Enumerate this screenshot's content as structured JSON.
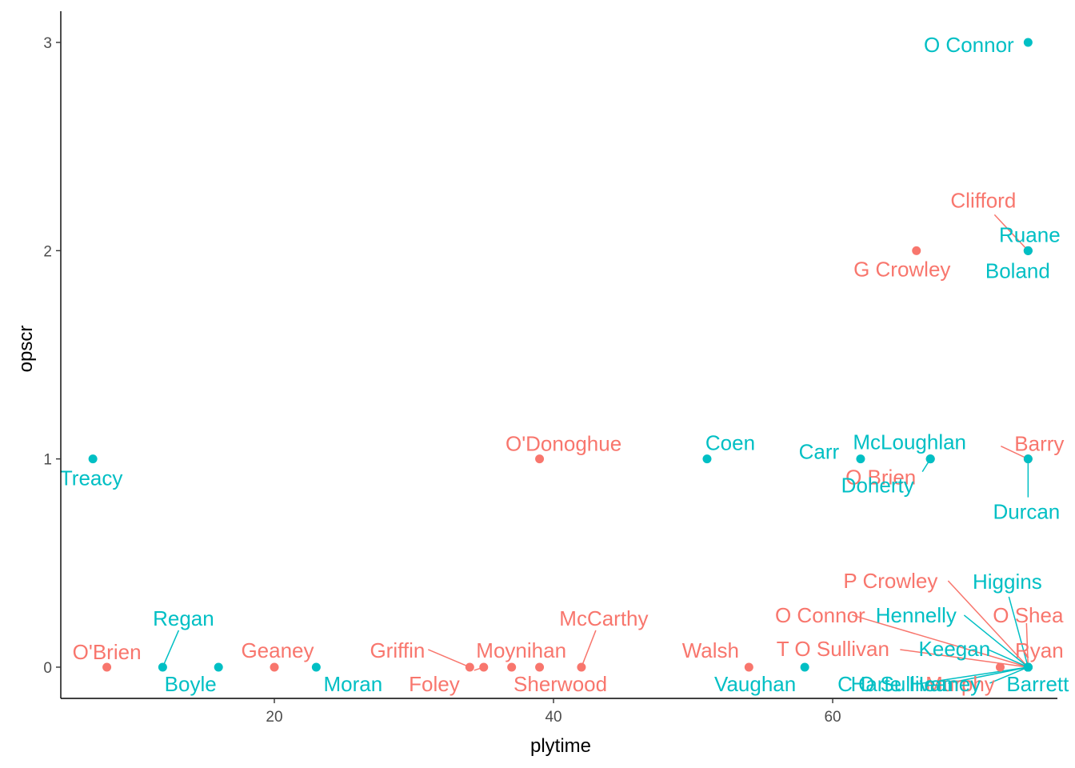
{
  "colors": {
    "team_a": "#F8766D",
    "team_b": "#00BFC4",
    "axis": "#000000",
    "tick_text": "#4d4d4d"
  },
  "chart_data": {
    "type": "scatter",
    "title": "",
    "xlabel": "plytime",
    "ylabel": "opscr",
    "xlim": [
      4.7,
      76.1
    ],
    "ylim": [
      -0.15,
      3.15
    ],
    "x_ticks": [
      20,
      40,
      60
    ],
    "y_ticks": [
      0,
      1,
      2,
      3
    ],
    "grid": false,
    "legend": "none",
    "points": [
      {
        "label": "O'Brien",
        "x": 8,
        "y": 0,
        "group": "a"
      },
      {
        "label": "Geaney",
        "x": 20,
        "y": 0,
        "group": "a"
      },
      {
        "label": "Griffin",
        "x": 34,
        "y": 0,
        "group": "a"
      },
      {
        "label": "Foley",
        "x": 35,
        "y": 0,
        "group": "a"
      },
      {
        "label": "Moynihan",
        "x": 37,
        "y": 0,
        "group": "a"
      },
      {
        "label": "Sherwood",
        "x": 39,
        "y": 0,
        "group": "a"
      },
      {
        "label": "McCarthy",
        "x": 42,
        "y": 0,
        "group": "a"
      },
      {
        "label": "Walsh",
        "x": 54,
        "y": 0,
        "group": "a"
      },
      {
        "label": "P Crowley",
        "x": 74,
        "y": 0,
        "group": "a"
      },
      {
        "label": "O Connor",
        "x": 74,
        "y": 0,
        "group": "a"
      },
      {
        "label": "T O Sullivan",
        "x": 74,
        "y": 0,
        "group": "a"
      },
      {
        "label": "O Shea",
        "x": 74,
        "y": 0,
        "group": "a"
      },
      {
        "label": "Ryan",
        "x": 74,
        "y": 0,
        "group": "a"
      },
      {
        "label": "Murphy",
        "x": 72,
        "y": 0,
        "group": "a"
      },
      {
        "label": "O'Donoghue",
        "x": 39,
        "y": 1,
        "group": "a"
      },
      {
        "label": "Barry",
        "x": 74,
        "y": 1,
        "group": "a"
      },
      {
        "label": "O Brien",
        "x": 67,
        "y": 1,
        "group": "a"
      },
      {
        "label": "G Crowley",
        "x": 66,
        "y": 2,
        "group": "a"
      },
      {
        "label": "Clifford",
        "x": 74,
        "y": 2,
        "group": "a"
      },
      {
        "label": "Regan",
        "x": 12,
        "y": 0,
        "group": "b"
      },
      {
        "label": "Boyle",
        "x": 16,
        "y": 0,
        "group": "b"
      },
      {
        "label": "Moran",
        "x": 23,
        "y": 0,
        "group": "b"
      },
      {
        "label": "Vaughan",
        "x": 58,
        "y": 0,
        "group": "b"
      },
      {
        "label": "C O Sullivan",
        "x": 74,
        "y": 0,
        "group": "b"
      },
      {
        "label": "Harte",
        "x": 74,
        "y": 0,
        "group": "b"
      },
      {
        "label": "Heaney",
        "x": 74,
        "y": 0,
        "group": "b"
      },
      {
        "label": "Barrett",
        "x": 74,
        "y": 0,
        "group": "b"
      },
      {
        "label": "Higgins",
        "x": 74,
        "y": 0,
        "group": "b"
      },
      {
        "label": "Hennelly",
        "x": 74,
        "y": 0,
        "group": "b"
      },
      {
        "label": "Keegan",
        "x": 74,
        "y": 0,
        "group": "b"
      },
      {
        "label": "Treacy",
        "x": 7,
        "y": 1,
        "group": "b"
      },
      {
        "label": "Coen",
        "x": 51,
        "y": 1,
        "group": "b"
      },
      {
        "label": "Carr",
        "x": 62,
        "y": 1,
        "group": "b"
      },
      {
        "label": "McLoughlan",
        "x": 67,
        "y": 1,
        "group": "b"
      },
      {
        "label": "Doherty",
        "x": 67,
        "y": 1,
        "group": "b"
      },
      {
        "label": "Durcan",
        "x": 74,
        "y": 1,
        "group": "b"
      },
      {
        "label": "Boland",
        "x": 74,
        "y": 2,
        "group": "b"
      },
      {
        "label": "Ruane",
        "x": 74,
        "y": 2,
        "group": "b"
      },
      {
        "label": "O Connor",
        "x": 74,
        "y": 3,
        "group": "b"
      }
    ]
  }
}
